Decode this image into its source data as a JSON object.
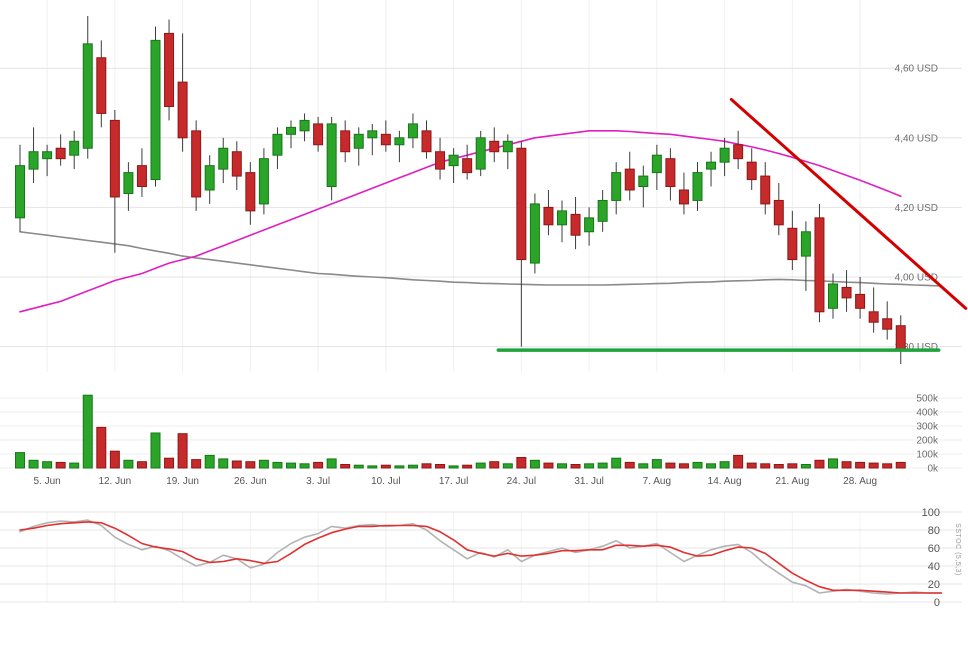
{
  "xaxis": {
    "labels": [
      "5. Jun",
      "12. Jun",
      "19. Jun",
      "26. Jun",
      "3. Jul",
      "10. Jul",
      "17. Jul",
      "24. Jul",
      "31. Jul",
      "7. Aug",
      "14. Aug",
      "21. Aug",
      "28. Aug"
    ],
    "positions": [
      2,
      7,
      12,
      17,
      22,
      27,
      32,
      37,
      42,
      47,
      52,
      57,
      62
    ]
  },
  "chart_data": [
    {
      "type": "candlestick",
      "panel": "price",
      "ylim": [
        3.727,
        4.796
      ],
      "yticks": [
        {
          "value": 4.6,
          "label": "4,60 USD"
        },
        {
          "value": 4.4,
          "label": "4,40 USD"
        },
        {
          "value": 4.2,
          "label": "4,20 USD"
        },
        {
          "value": 4.0,
          "label": "4,00 USD"
        },
        {
          "value": 3.8,
          "label": "3,80 USD"
        }
      ],
      "up_color": "#2aa52a",
      "up_stroke": "#157815",
      "down_color": "#c62a2a",
      "down_stroke": "#8f1717",
      "wick_color": "#3c3c3c",
      "candles": [
        [
          4.17,
          4.38,
          4.13,
          4.32
        ],
        [
          4.31,
          4.43,
          4.27,
          4.36
        ],
        [
          4.34,
          4.38,
          4.29,
          4.36
        ],
        [
          4.37,
          4.41,
          4.32,
          4.34
        ],
        [
          4.35,
          4.42,
          4.31,
          4.39
        ],
        [
          4.37,
          4.75,
          4.34,
          4.67
        ],
        [
          4.63,
          4.68,
          4.43,
          4.47
        ],
        [
          4.45,
          4.48,
          4.07,
          4.23
        ],
        [
          4.24,
          4.33,
          4.19,
          4.3
        ],
        [
          4.32,
          4.37,
          4.23,
          4.26
        ],
        [
          4.28,
          4.72,
          4.26,
          4.68
        ],
        [
          4.7,
          4.74,
          4.45,
          4.49
        ],
        [
          4.56,
          4.7,
          4.36,
          4.4
        ],
        [
          4.42,
          4.45,
          4.19,
          4.23
        ],
        [
          4.25,
          4.35,
          4.21,
          4.32
        ],
        [
          4.31,
          4.4,
          4.27,
          4.37
        ],
        [
          4.36,
          4.39,
          4.25,
          4.29
        ],
        [
          4.3,
          4.33,
          4.15,
          4.19
        ],
        [
          4.21,
          4.37,
          4.18,
          4.34
        ],
        [
          4.35,
          4.43,
          4.31,
          4.41
        ],
        [
          4.41,
          4.45,
          4.37,
          4.43
        ],
        [
          4.42,
          4.47,
          4.39,
          4.45
        ],
        [
          4.44,
          4.46,
          4.36,
          4.38
        ],
        [
          4.26,
          4.46,
          4.22,
          4.44
        ],
        [
          4.42,
          4.45,
          4.33,
          4.36
        ],
        [
          4.37,
          4.43,
          4.32,
          4.41
        ],
        [
          4.4,
          4.44,
          4.35,
          4.42
        ],
        [
          4.41,
          4.45,
          4.36,
          4.38
        ],
        [
          4.38,
          4.42,
          4.33,
          4.4
        ],
        [
          4.4,
          4.47,
          4.37,
          4.44
        ],
        [
          4.42,
          4.45,
          4.34,
          4.36
        ],
        [
          4.36,
          4.4,
          4.28,
          4.31
        ],
        [
          4.32,
          4.37,
          4.27,
          4.35
        ],
        [
          4.34,
          4.38,
          4.28,
          4.3
        ],
        [
          4.31,
          4.42,
          4.29,
          4.4
        ],
        [
          4.39,
          4.43,
          4.33,
          4.36
        ],
        [
          4.36,
          4.41,
          4.31,
          4.39
        ],
        [
          4.37,
          4.39,
          3.8,
          4.05
        ],
        [
          4.04,
          4.24,
          4.01,
          4.21
        ],
        [
          4.2,
          4.25,
          4.12,
          4.15
        ],
        [
          4.15,
          4.22,
          4.1,
          4.19
        ],
        [
          4.18,
          4.23,
          4.08,
          4.12
        ],
        [
          4.13,
          4.2,
          4.09,
          4.17
        ],
        [
          4.16,
          4.25,
          4.13,
          4.22
        ],
        [
          4.22,
          4.33,
          4.18,
          4.3
        ],
        [
          4.31,
          4.36,
          4.22,
          4.25
        ],
        [
          4.26,
          4.32,
          4.2,
          4.29
        ],
        [
          4.3,
          4.38,
          4.25,
          4.35
        ],
        [
          4.34,
          4.37,
          4.22,
          4.26
        ],
        [
          4.25,
          4.3,
          4.18,
          4.21
        ],
        [
          4.22,
          4.33,
          4.19,
          4.3
        ],
        [
          4.31,
          4.36,
          4.26,
          4.33
        ],
        [
          4.33,
          4.4,
          4.29,
          4.37
        ],
        [
          4.38,
          4.42,
          4.31,
          4.34
        ],
        [
          4.33,
          4.37,
          4.25,
          4.28
        ],
        [
          4.29,
          4.33,
          4.18,
          4.21
        ],
        [
          4.22,
          4.27,
          4.12,
          4.15
        ],
        [
          4.14,
          4.19,
          4.02,
          4.05
        ],
        [
          4.06,
          4.16,
          3.96,
          4.13
        ],
        [
          4.17,
          4.21,
          3.87,
          3.9
        ],
        [
          3.91,
          4.01,
          3.88,
          3.98
        ],
        [
          3.97,
          4.02,
          3.9,
          3.94
        ],
        [
          3.95,
          4.0,
          3.88,
          3.91
        ],
        [
          3.9,
          3.97,
          3.84,
          3.87
        ],
        [
          3.88,
          3.93,
          3.82,
          3.85
        ],
        [
          3.86,
          3.89,
          3.75,
          3.79
        ]
      ],
      "overlays": {
        "ma_fast": {
          "name": "moving-average-fast",
          "color": "#df1fbe",
          "values": [
            3.9,
            3.91,
            3.92,
            3.93,
            3.945,
            3.96,
            3.975,
            3.99,
            4.0,
            4.01,
            4.025,
            4.04,
            4.05,
            4.06,
            4.075,
            4.09,
            4.105,
            4.12,
            4.135,
            4.15,
            4.165,
            4.18,
            4.195,
            4.21,
            4.225,
            4.24,
            4.255,
            4.27,
            4.285,
            4.3,
            4.315,
            4.33,
            4.34,
            4.35,
            4.36,
            4.37,
            4.38,
            4.39,
            4.4,
            4.405,
            4.41,
            4.415,
            4.42,
            4.42,
            4.42,
            4.418,
            4.415,
            4.412,
            4.41,
            4.405,
            4.4,
            4.395,
            4.39,
            4.382,
            4.374,
            4.365,
            4.355,
            4.344,
            4.332,
            4.32,
            4.306,
            4.292,
            4.278,
            4.263,
            4.248,
            4.232
          ]
        },
        "ma_slow": {
          "name": "moving-average-slow",
          "color": "#8a8a8a",
          "values": [
            4.13,
            4.125,
            4.12,
            4.115,
            4.11,
            4.105,
            4.1,
            4.095,
            4.09,
            4.082,
            4.075,
            4.068,
            4.06,
            4.055,
            4.05,
            4.045,
            4.04,
            4.035,
            4.03,
            4.025,
            4.02,
            4.015,
            4.01,
            4.008,
            4.005,
            4.002,
            4.0,
            3.998,
            3.995,
            3.992,
            3.99,
            3.988,
            3.985,
            3.984,
            3.982,
            3.981,
            3.98,
            3.979,
            3.978,
            3.977,
            3.977,
            3.977,
            3.977,
            3.977,
            3.978,
            3.979,
            3.98,
            3.981,
            3.982,
            3.984,
            3.985,
            3.986,
            3.988,
            3.989,
            3.99,
            3.992,
            3.993,
            3.992,
            3.99,
            3.989,
            3.987,
            3.985,
            3.984,
            3.982,
            3.98,
            3.979,
            3.977,
            3.976,
            3.974
          ]
        },
        "trendline": {
          "name": "downtrend-line",
          "color": "#d40000",
          "width": 3,
          "points": [
            [
              52.5,
              4.51
            ],
            [
              69.8,
              3.91
            ]
          ]
        },
        "support": {
          "name": "support-line",
          "color": "#1fa33c",
          "width": 3.5,
          "points": [
            [
              35.3,
              3.79
            ],
            [
              67.8,
              3.79
            ]
          ]
        }
      }
    },
    {
      "type": "bar",
      "panel": "volume",
      "unit": "k",
      "yticks": [
        {
          "value": 500,
          "label": "500k"
        },
        {
          "value": 400,
          "label": "400k"
        },
        {
          "value": 300,
          "label": "300k"
        },
        {
          "value": 200,
          "label": "200k"
        },
        {
          "value": 100,
          "label": "100k"
        },
        {
          "value": 0,
          "label": "0k"
        }
      ],
      "values": [
        110,
        55,
        45,
        40,
        35,
        520,
        290,
        120,
        55,
        45,
        250,
        70,
        245,
        60,
        90,
        65,
        50,
        45,
        55,
        40,
        35,
        30,
        40,
        65,
        25,
        20,
        15,
        20,
        15,
        20,
        30,
        25,
        15,
        20,
        35,
        45,
        30,
        75,
        55,
        35,
        30,
        25,
        30,
        35,
        70,
        40,
        30,
        60,
        35,
        30,
        40,
        30,
        45,
        90,
        35,
        30,
        25,
        30,
        25,
        55,
        65,
        45,
        40,
        35,
        30,
        40
      ]
    },
    {
      "type": "line",
      "panel": "stochastic",
      "label": "SSTOC (5,5,3)",
      "ylim": [
        0,
        100
      ],
      "yticks": [
        100,
        80,
        60,
        40,
        20,
        0
      ],
      "series": [
        {
          "name": "stochastic-k",
          "color": "#b3b3b3",
          "values": [
            78,
            84,
            88,
            90,
            89,
            91,
            85,
            72,
            64,
            58,
            62,
            57,
            48,
            40,
            44,
            52,
            48,
            38,
            42,
            55,
            65,
            72,
            76,
            84,
            82,
            85,
            86,
            84,
            85,
            87,
            80,
            68,
            58,
            48,
            55,
            50,
            58,
            45,
            52,
            56,
            60,
            55,
            58,
            62,
            68,
            60,
            62,
            65,
            55,
            45,
            52,
            58,
            62,
            64,
            55,
            42,
            32,
            22,
            18,
            10,
            12,
            14,
            12,
            10,
            9,
            10,
            11,
            10,
            10
          ]
        },
        {
          "name": "stochastic-d",
          "color": "#e03030",
          "values": [
            80,
            82,
            85,
            87,
            88,
            89,
            88,
            82,
            74,
            65,
            61,
            59,
            56,
            48,
            44,
            45,
            48,
            46,
            43,
            45,
            54,
            64,
            71,
            77,
            81,
            84,
            84,
            85,
            85,
            85,
            84,
            78,
            69,
            58,
            54,
            51,
            54,
            51,
            52,
            54,
            57,
            57,
            58,
            58,
            63,
            63,
            62,
            63,
            61,
            55,
            51,
            52,
            57,
            61,
            60,
            54,
            43,
            32,
            24,
            17,
            13,
            13,
            13,
            12,
            11,
            10,
            10,
            10,
            10
          ]
        }
      ]
    }
  ]
}
